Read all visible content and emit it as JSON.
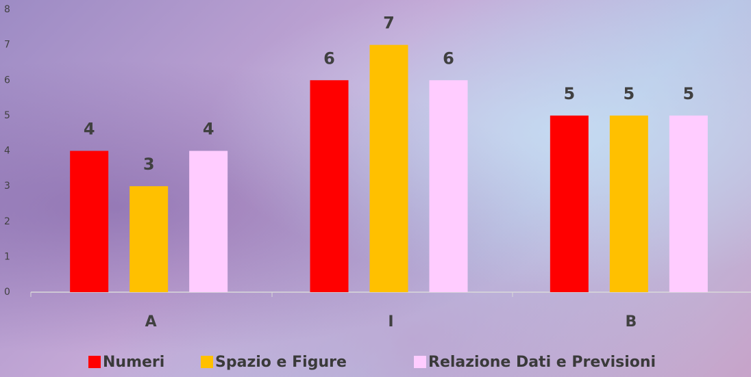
{
  "chart_data": {
    "type": "bar",
    "categories": [
      "A",
      "I",
      "B"
    ],
    "series": [
      {
        "name": "Numeri",
        "color": "#ff0000",
        "values": [
          4,
          6,
          5
        ]
      },
      {
        "name": "Spazio e Figure",
        "color": "#ffc000",
        "values": [
          3,
          7,
          5
        ]
      },
      {
        "name": "Relazione Dati e Previsioni",
        "color": "#ffccff",
        "values": [
          4,
          6,
          5
        ]
      }
    ],
    "ylim": [
      0,
      8
    ],
    "yticks": [
      0,
      1,
      2,
      3,
      4,
      5,
      6,
      7,
      8
    ],
    "grid": false,
    "legend": "bottom"
  }
}
